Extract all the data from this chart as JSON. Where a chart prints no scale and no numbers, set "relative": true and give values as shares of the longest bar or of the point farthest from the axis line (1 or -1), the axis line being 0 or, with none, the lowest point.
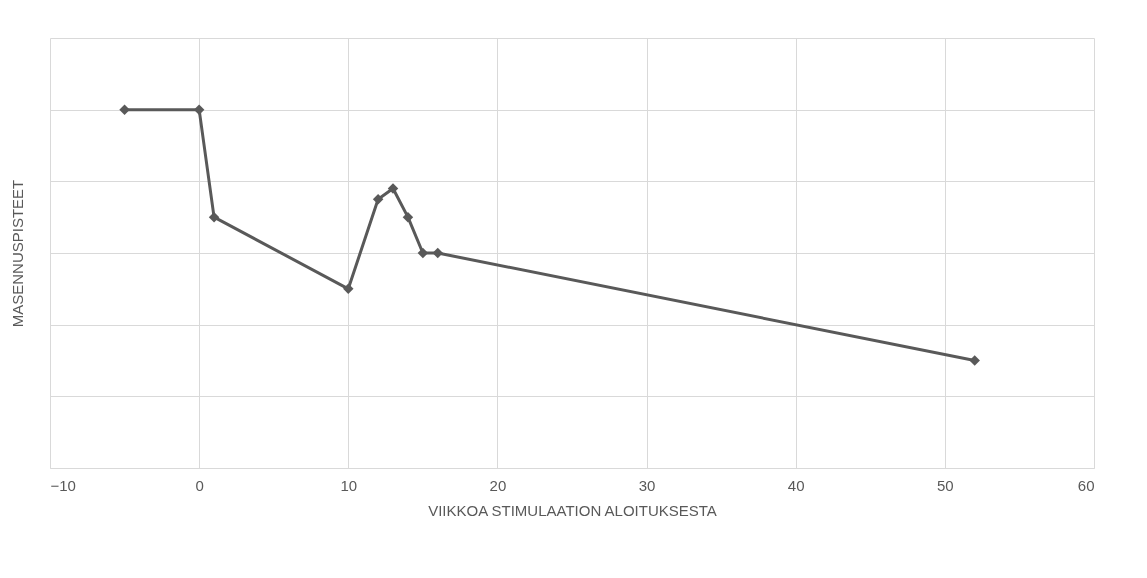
{
  "chart_data": {
    "type": "line",
    "relative": true,
    "xlabel": "VIIKKOA STIMULAATION ALOITUKSESTA",
    "ylabel": "MASENNUSPISTEET",
    "x": [
      -5,
      0,
      1,
      10,
      12,
      13,
      14,
      15,
      16,
      52
    ],
    "series": [
      {
        "color": "#595959",
        "values": [
          1,
          1,
          0.7,
          0.5,
          0.75,
          0.78,
          0.7,
          0.6,
          0.6,
          0.3
        ]
      }
    ],
    "xlim": [
      -10,
      60
    ],
    "xticks": [
      -10,
      0,
      10,
      20,
      30,
      40,
      50,
      60
    ],
    "grid": true,
    "marker": "diamond",
    "line_style": "solid"
  }
}
